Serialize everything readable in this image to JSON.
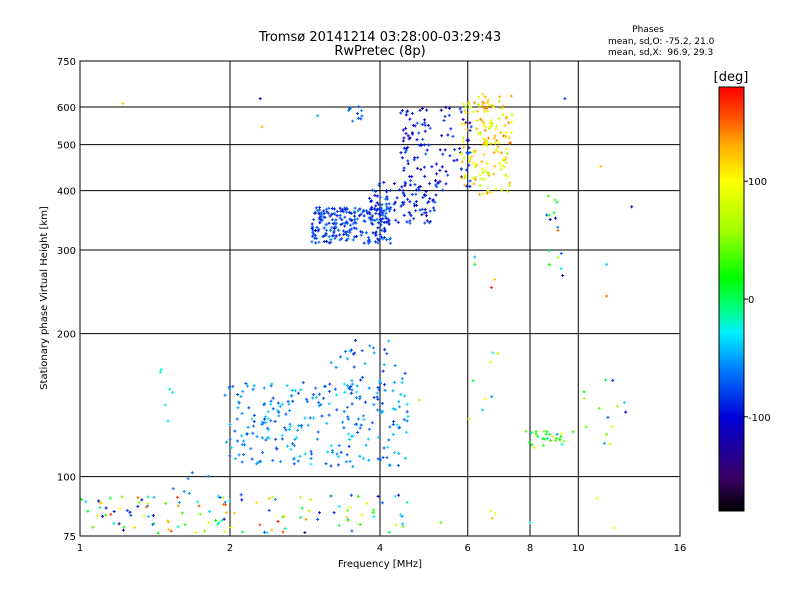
{
  "header": {
    "title": "Tromsø 20141214 03:28:00-03:29:43",
    "subtitle": "RwPretec (8p)"
  },
  "info": {
    "heading": "Phases",
    "line1": "mean, sd,O: -75.2, 21.0",
    "line2": "mean, sd,X:  96.9, 29.3"
  },
  "colorbar": {
    "unit": "[deg]",
    "min": -180,
    "max": 180,
    "ticks": [
      100,
      0,
      -100
    ],
    "tick_labels": [
      "100",
      "0",
      "-100"
    ],
    "colors": [
      "#000000",
      "#3a0067",
      "#0000d8",
      "#0078ff",
      "#00f0ff",
      "#00ff78",
      "#00ff00",
      "#a0ff00",
      "#ffff00",
      "#ffb000",
      "#ff5000",
      "#ff0000"
    ]
  },
  "chart_data": {
    "type": "scatter",
    "xlabel": "Frequency [MHz]",
    "ylabel": "Stationary phase Virtual Height [km]",
    "x_scale": "log",
    "y_scale": "log",
    "xlim": [
      1,
      16
    ],
    "ylim": [
      75,
      750
    ],
    "x_ticks": [
      1,
      2,
      4,
      6,
      8,
      10,
      16
    ],
    "x_tick_labels": [
      "1",
      "2",
      "4",
      "6",
      "8",
      "10",
      "16"
    ],
    "y_ticks": [
      75,
      100,
      200,
      300,
      400,
      500,
      600,
      750
    ],
    "y_tick_labels": [
      "75",
      "100",
      "200",
      "300",
      "400",
      "500",
      "600",
      "750"
    ],
    "grid": true,
    "clusters": [
      {
        "f": [
          2.9,
          4.2
        ],
        "h": [
          310,
          370
        ],
        "phase": [
          -100,
          -60
        ],
        "n": 220
      },
      {
        "f": [
          3.8,
          5.2
        ],
        "h": [
          340,
          420
        ],
        "phase": [
          -110,
          -70
        ],
        "n": 110
      },
      {
        "f": [
          4.4,
          6.1
        ],
        "h": [
          400,
          600
        ],
        "phase": [
          -120,
          -70
        ],
        "n": 120
      },
      {
        "f": [
          5.8,
          7.3
        ],
        "h": [
          390,
          620
        ],
        "phase": [
          60,
          140
        ],
        "n": 130
      },
      {
        "f": [
          6.3,
          7.4
        ],
        "h": [
          500,
          640
        ],
        "phase": [
          70,
          150
        ],
        "n": 30
      },
      {
        "f": [
          3.4,
          3.7
        ],
        "h": [
          560,
          620
        ],
        "phase": [
          -80,
          -40
        ],
        "n": 10
      },
      {
        "f": [
          1.95,
          4.6
        ],
        "h": [
          105,
          160
        ],
        "phase": [
          -80,
          -30
        ],
        "n": 240
      },
      {
        "f": [
          3.0,
          4.5
        ],
        "h": [
          140,
          195
        ],
        "phase": [
          -90,
          -40
        ],
        "n": 50
      },
      {
        "f": [
          1.0,
          4.6
        ],
        "h": [
          76,
          92
        ],
        "phase": [
          -140,
          170
        ],
        "n": 130
      },
      {
        "f": [
          6.5,
          7.0
        ],
        "h": [
          80,
          85
        ],
        "phase": [
          60,
          160
        ],
        "n": 3
      },
      {
        "f": [
          7.8,
          9.8
        ],
        "h": [
          115,
          125
        ],
        "phase": [
          -60,
          100
        ],
        "n": 30
      },
      {
        "f": [
          10.0,
          12.5
        ],
        "h": [
          115,
          160
        ],
        "phase": [
          -120,
          100
        ],
        "n": 14
      },
      {
        "f": [
          6.0,
          7.0
        ],
        "h": [
          130,
          185
        ],
        "phase": [
          -60,
          100
        ],
        "n": 8
      },
      {
        "f": [
          8.5,
          9.6
        ],
        "h": [
          270,
          390
        ],
        "phase": [
          -120,
          80
        ],
        "n": 12
      },
      {
        "f": [
          1.45,
          1.55
        ],
        "h": [
          130,
          175
        ],
        "phase": [
          -40,
          -20
        ],
        "n": 6
      },
      {
        "f": [
          1.5,
          1.9
        ],
        "h": [
          92,
          105
        ],
        "phase": [
          -100,
          -40
        ],
        "n": 6
      }
    ],
    "points": [
      {
        "f": 2.3,
        "h": 625,
        "phase": -120
      },
      {
        "f": 2.32,
        "h": 545,
        "phase": 130
      },
      {
        "f": 1.22,
        "h": 610,
        "phase": 120
      },
      {
        "f": 3.0,
        "h": 575,
        "phase": -50
      },
      {
        "f": 9.4,
        "h": 625,
        "phase": -80
      },
      {
        "f": 12.8,
        "h": 370,
        "phase": -120
      },
      {
        "f": 11.1,
        "h": 450,
        "phase": 120
      },
      {
        "f": 8.7,
        "h": 390,
        "phase": 30
      },
      {
        "f": 9.0,
        "h": 350,
        "phase": -100
      },
      {
        "f": 9.1,
        "h": 330,
        "phase": 150
      },
      {
        "f": 9.3,
        "h": 265,
        "phase": -120
      },
      {
        "f": 11.4,
        "h": 240,
        "phase": 150
      },
      {
        "f": 11.4,
        "h": 280,
        "phase": -40
      },
      {
        "f": 6.2,
        "h": 290,
        "phase": -40
      },
      {
        "f": 6.2,
        "h": 280,
        "phase": 10
      },
      {
        "f": 6.8,
        "h": 260,
        "phase": 120
      },
      {
        "f": 6.7,
        "h": 250,
        "phase": 170
      },
      {
        "f": 10.9,
        "h": 90,
        "phase": 100
      },
      {
        "f": 11.8,
        "h": 78,
        "phase": 100
      },
      {
        "f": 8.0,
        "h": 80,
        "phase": -30
      },
      {
        "f": 5.3,
        "h": 80,
        "phase": 40
      },
      {
        "f": 4.8,
        "h": 145,
        "phase": 60
      }
    ]
  }
}
